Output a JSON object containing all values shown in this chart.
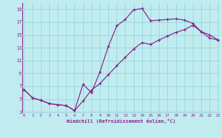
{
  "xlabel": "Windchill (Refroidissement éolien,°C)",
  "bg_color": "#c0ecf0",
  "grid_color": "#98d8de",
  "line_color": "#882288",
  "x_min": 0,
  "x_max": 23,
  "y_min": 3,
  "y_max": 20,
  "yticks": [
    3,
    5,
    7,
    9,
    11,
    13,
    15,
    17,
    19
  ],
  "xticks": [
    0,
    1,
    2,
    3,
    4,
    5,
    6,
    7,
    8,
    9,
    10,
    11,
    12,
    13,
    14,
    15,
    16,
    17,
    18,
    19,
    20,
    21,
    22,
    23
  ],
  "line1_x": [
    0,
    1,
    2,
    3,
    4,
    5,
    6,
    7,
    8,
    9,
    10,
    11,
    12,
    13,
    14,
    15,
    16,
    17,
    18,
    19,
    20,
    21,
    22,
    23
  ],
  "line1_y": [
    6.5,
    5.2,
    4.8,
    4.3,
    4.1,
    4.0,
    3.2,
    7.3,
    6.0,
    9.2,
    13.2,
    16.4,
    17.4,
    18.9,
    19.1,
    17.2,
    17.3,
    17.4,
    17.5,
    17.3,
    16.8,
    15.5,
    15.0,
    14.2
  ],
  "line2_x": [
    0,
    1,
    2,
    3,
    4,
    5,
    6,
    7,
    8,
    9,
    10,
    11,
    12,
    13,
    14,
    15,
    16,
    17,
    18,
    19,
    20,
    21,
    22,
    23
  ],
  "line2_y": [
    6.5,
    5.2,
    4.8,
    4.3,
    4.1,
    4.0,
    3.2,
    4.7,
    6.4,
    7.4,
    8.8,
    10.2,
    11.5,
    12.8,
    13.8,
    13.5,
    14.2,
    14.8,
    15.4,
    15.8,
    16.5,
    15.5,
    14.5,
    14.2
  ]
}
